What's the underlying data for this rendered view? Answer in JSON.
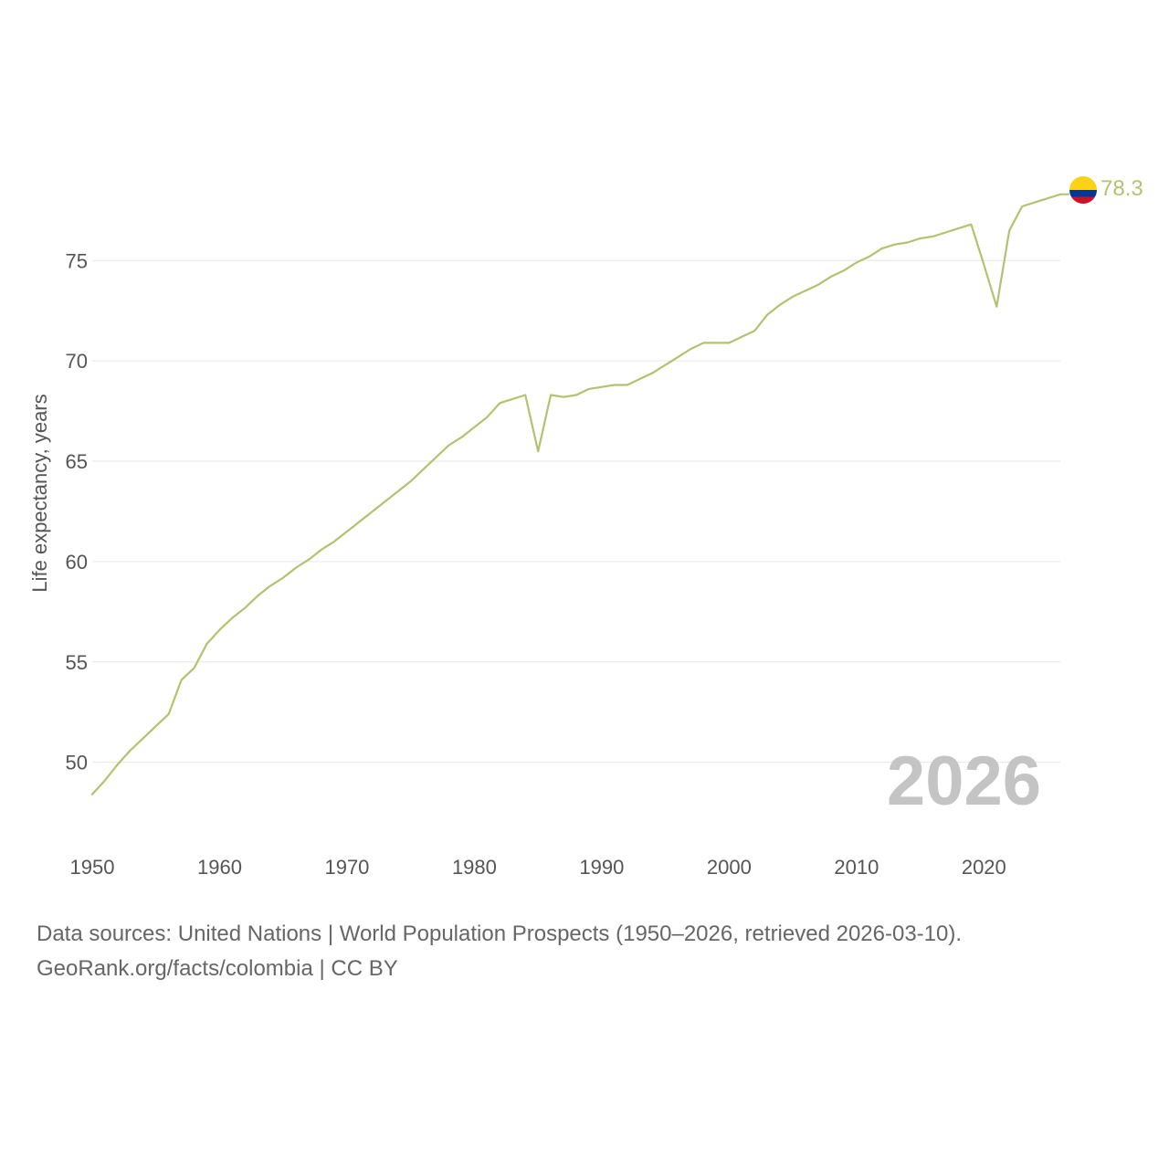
{
  "chart_data": {
    "type": "line",
    "title": "",
    "xlabel": "",
    "ylabel": "Life expectancy, years",
    "xlim": [
      1950,
      2026
    ],
    "ylim": [
      46.8,
      79.7
    ],
    "x_ticks": [
      1950,
      1960,
      1970,
      1980,
      1990,
      2000,
      2010,
      2020
    ],
    "y_ticks": [
      50,
      55,
      60,
      65,
      70,
      75
    ],
    "grid": true,
    "highlight_year": "2026",
    "series": [
      {
        "name": "Colombia",
        "color": "#b3c270",
        "end_label": "78.3",
        "x": [
          1950,
          1951,
          1952,
          1953,
          1954,
          1955,
          1956,
          1957,
          1958,
          1959,
          1960,
          1961,
          1962,
          1963,
          1964,
          1965,
          1966,
          1967,
          1968,
          1969,
          1970,
          1971,
          1972,
          1973,
          1974,
          1975,
          1976,
          1977,
          1978,
          1979,
          1980,
          1981,
          1982,
          1983,
          1984,
          1985,
          1986,
          1987,
          1988,
          1989,
          1990,
          1991,
          1992,
          1993,
          1994,
          1995,
          1996,
          1997,
          1998,
          1999,
          2000,
          2001,
          2002,
          2003,
          2004,
          2005,
          2006,
          2007,
          2008,
          2009,
          2010,
          2011,
          2012,
          2013,
          2014,
          2015,
          2016,
          2017,
          2018,
          2019,
          2020,
          2021,
          2022,
          2023,
          2024,
          2025,
          2026
        ],
        "values": [
          48.4,
          49.1,
          49.9,
          50.6,
          51.2,
          51.8,
          52.4,
          54.1,
          54.7,
          55.9,
          56.6,
          57.2,
          57.7,
          58.3,
          58.8,
          59.2,
          59.7,
          60.1,
          60.6,
          61.0,
          61.5,
          62.0,
          62.5,
          63.0,
          63.5,
          64.0,
          64.6,
          65.2,
          65.8,
          66.2,
          66.7,
          67.2,
          67.9,
          68.1,
          68.3,
          65.5,
          68.3,
          68.2,
          68.3,
          68.6,
          68.7,
          68.8,
          68.8,
          69.1,
          69.4,
          69.8,
          70.2,
          70.6,
          70.9,
          70.9,
          70.9,
          71.2,
          71.5,
          72.3,
          72.8,
          73.2,
          73.5,
          73.8,
          74.2,
          74.5,
          74.9,
          75.2,
          75.6,
          75.8,
          75.9,
          76.1,
          76.2,
          76.4,
          76.6,
          76.8,
          74.8,
          72.7,
          76.5,
          77.7,
          77.9,
          78.1,
          78.3
        ]
      }
    ]
  },
  "flag": {
    "country": "Colombia",
    "colors": [
      "#fcd116",
      "#003893",
      "#ce1126"
    ]
  },
  "footer": {
    "line1": "Data sources: United Nations | World Population Prospects (1950–2026, retrieved 2026-03-10).",
    "line2": "GeoRank.org/facts/colombia | CC BY"
  }
}
